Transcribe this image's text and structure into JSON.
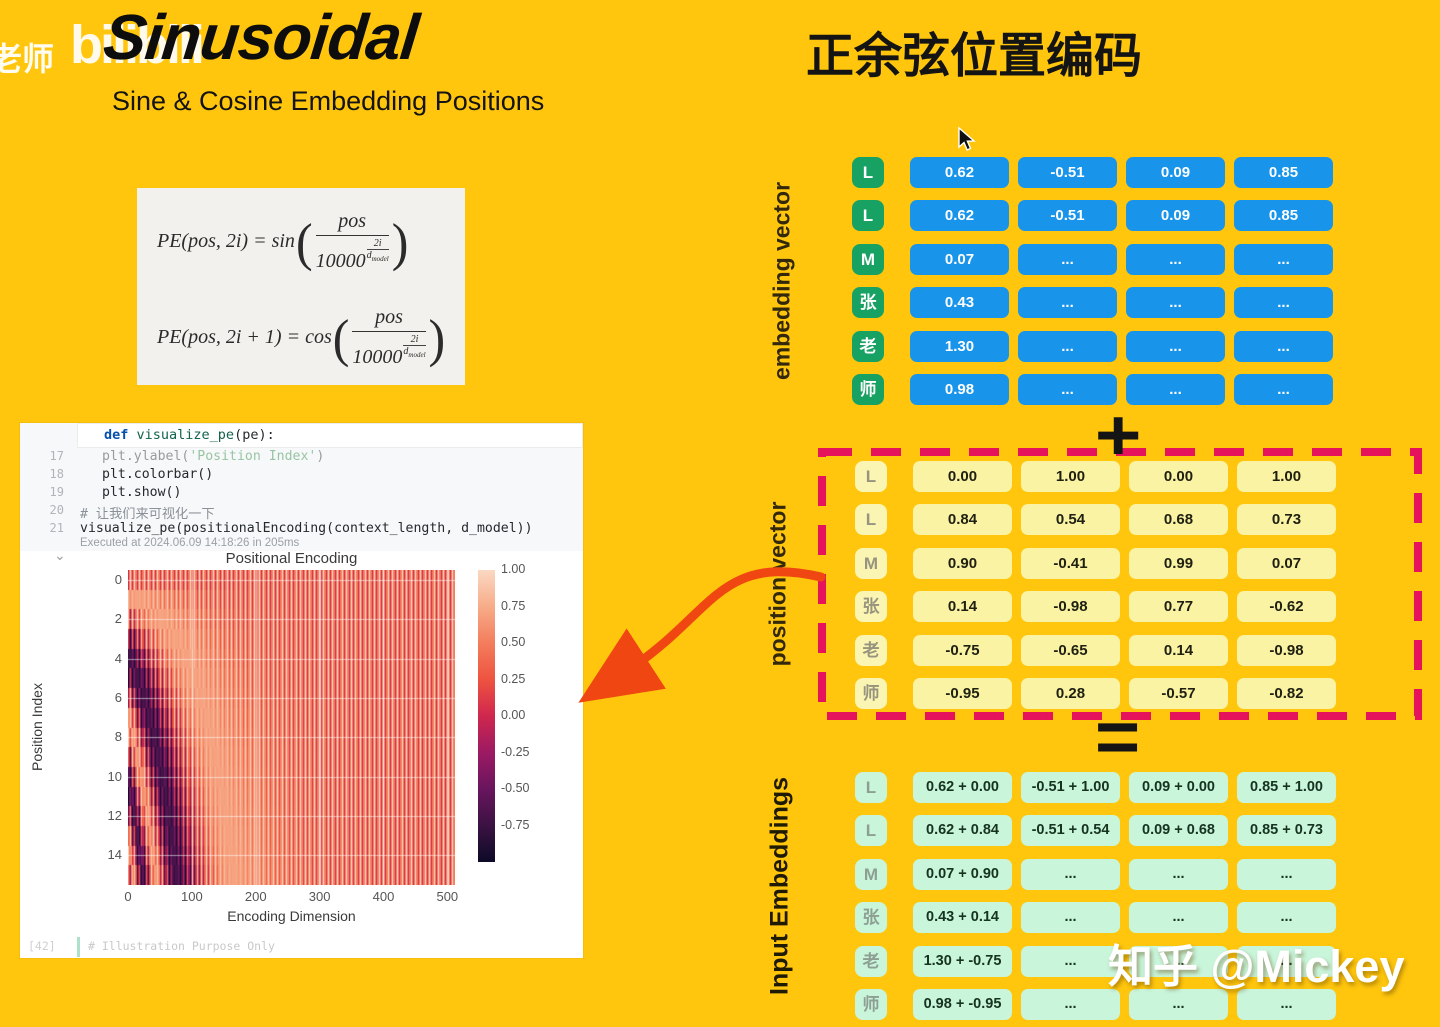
{
  "watermarks": {
    "teacher": "老师",
    "bilibili": "bilibili",
    "zhihu": "知乎 @Mickey"
  },
  "header": {
    "title": "Sinusoidal",
    "subtitle": "Sine & Cosine Embedding Positions",
    "title_cn": "正余弦位置编码"
  },
  "formula_box": {
    "f1": {
      "lhs": "PE(pos, 2i) = sin",
      "num": "pos",
      "base": "10000",
      "exp_num": "2i",
      "exp_den": "d",
      "exp_den_sub": "model"
    },
    "f2": {
      "lhs": "PE(pos, 2i + 1) = cos",
      "num": "pos",
      "base": "10000",
      "exp_num": "2i",
      "exp_den": "d",
      "exp_den_sub": "model"
    }
  },
  "code": {
    "tooltip": [
      {
        "t": "def ",
        "c": "kw"
      },
      {
        "t": "visualize_pe",
        "c": "fn"
      },
      {
        "t": "(pe):",
        "c": "pl"
      }
    ],
    "lines": [
      {
        "num": "17",
        "ind": true,
        "faded": true,
        "parts": [
          {
            "t": "plt.ylabel(",
            "c": "pl"
          },
          {
            "t": "'Position Index'",
            "c": "str"
          },
          {
            "t": ")",
            "c": "pl"
          }
        ]
      },
      {
        "num": "18",
        "ind": true,
        "parts": [
          {
            "t": "plt.colorbar()",
            "c": "pl"
          }
        ]
      },
      {
        "num": "19",
        "ind": true,
        "parts": [
          {
            "t": "plt.show()",
            "c": "pl"
          }
        ]
      },
      {
        "num": "20",
        "parts": [
          {
            "t": "# 让我们来可视化一下",
            "c": "cm"
          }
        ]
      },
      {
        "num": "21",
        "parts": [
          {
            "t": "visualize_pe(positionalEncoding(context_length, d_model))",
            "c": "pl"
          }
        ]
      }
    ],
    "executed": "Executed at 2024.06.09 14:18:26 in 205ms",
    "footer_num": "[42]",
    "footer_text": "# Illustration Purpose Only"
  },
  "chart_data": {
    "type": "heatmap",
    "title": "Positional Encoding",
    "xlabel": "Encoding Dimension",
    "ylabel": "Position Index",
    "x_ticks": [
      0,
      100,
      200,
      300,
      400,
      500
    ],
    "y_ticks": [
      0,
      2,
      4,
      6,
      8,
      10,
      12,
      14
    ],
    "colorbar_ticks": [
      1.0,
      0.75,
      0.5,
      0.25,
      0.0,
      -0.25,
      -0.5,
      -0.75
    ],
    "n_positions": 16,
    "n_dims": 512,
    "value_range": [
      -1,
      1
    ],
    "generator": "PE(pos,2i)=sin(pos/10000^(2i/d_model)); PE(pos,2i+1)=cos(pos/10000^(2i/d_model)); d_model=512; seaborn rocket colormap; white major grid"
  },
  "tables": {
    "embedding": {
      "label": "embedding vector",
      "tokens": [
        "L",
        "L",
        "M",
        "张",
        "老",
        "师"
      ],
      "rows": [
        [
          "0.62",
          "-0.51",
          "0.09",
          "0.85"
        ],
        [
          "0.62",
          "-0.51",
          "0.09",
          "0.85"
        ],
        [
          "0.07",
          "...",
          "...",
          "..."
        ],
        [
          "0.43",
          "...",
          "...",
          "..."
        ],
        [
          "1.30",
          "...",
          "...",
          "..."
        ],
        [
          "0.98",
          "...",
          "...",
          "..."
        ]
      ]
    },
    "position": {
      "label": "position vector",
      "tokens": [
        "L",
        "L",
        "M",
        "张",
        "老",
        "师"
      ],
      "rows": [
        [
          "0.00",
          "1.00",
          "0.00",
          "1.00"
        ],
        [
          "0.84",
          "0.54",
          "0.68",
          "0.73"
        ],
        [
          "0.90",
          "-0.41",
          "0.99",
          "0.07"
        ],
        [
          "0.14",
          "-0.98",
          "0.77",
          "-0.62"
        ],
        [
          "-0.75",
          "-0.65",
          "0.14",
          "-0.98"
        ],
        [
          "-0.95",
          "0.28",
          "-0.57",
          "-0.82"
        ]
      ]
    },
    "input": {
      "label": "Input Embeddings",
      "tokens": [
        "L",
        "L",
        "M",
        "张",
        "老",
        "师"
      ],
      "rows": [
        [
          "0.62 + 0.00",
          "-0.51 + 1.00",
          "0.09 + 0.00",
          "0.85 + 1.00"
        ],
        [
          "0.62 + 0.84",
          "-0.51 + 0.54",
          "0.09 + 0.68",
          "0.85 + 0.73"
        ],
        [
          "0.07 + 0.90",
          "...",
          "...",
          "..."
        ],
        [
          "0.43 + 0.14",
          "...",
          "...",
          "..."
        ],
        [
          "1.30 + -0.75",
          "...",
          "...",
          "..."
        ],
        [
          "0.98 + -0.95",
          "...",
          "...",
          "..."
        ]
      ]
    }
  },
  "operators": {
    "plus": "+",
    "equals": "="
  },
  "colors": {
    "background": "#FFC60D",
    "token_green": "#17A263",
    "cell_blue": "#1895EA",
    "cell_yellow": "#F9F3A3",
    "cell_mint": "#C9F5DA",
    "dash_red": "#E5125C",
    "arrow_orange": "#F04712"
  }
}
